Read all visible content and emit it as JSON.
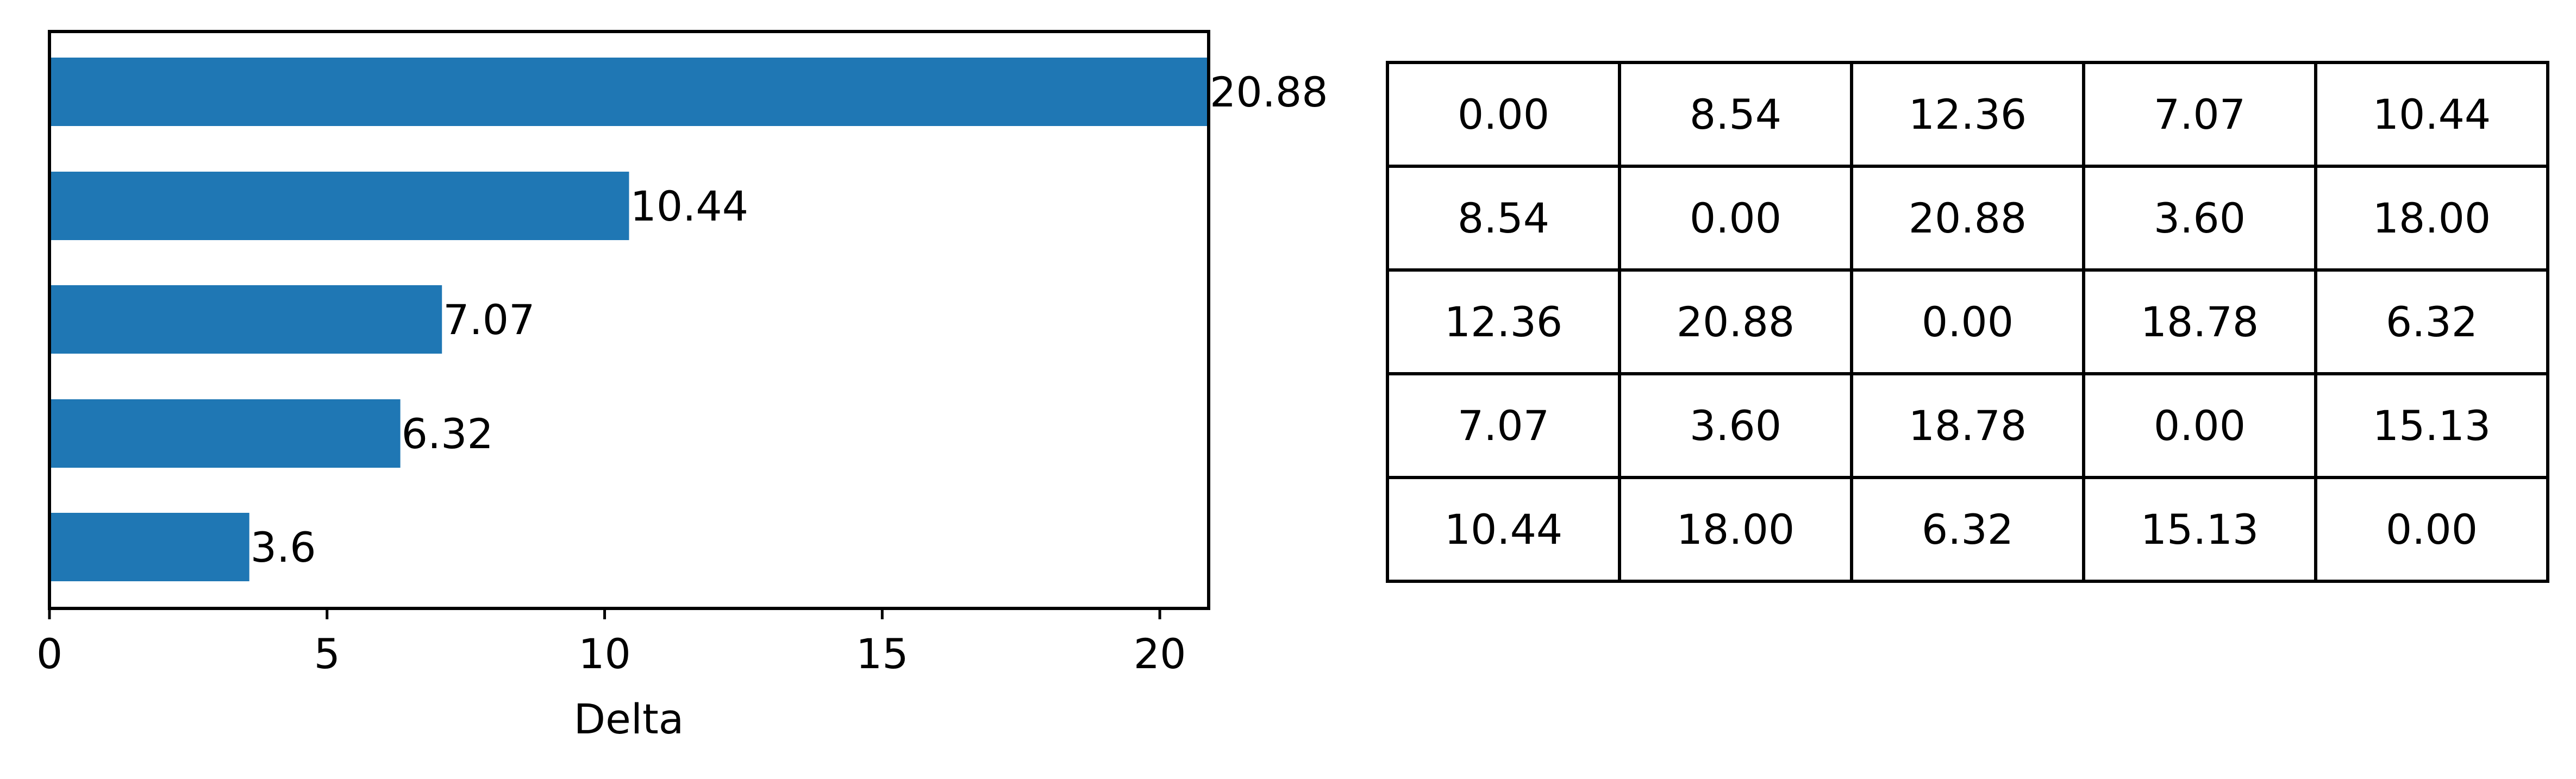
{
  "chart_data": [
    {
      "type": "bar",
      "orientation": "horizontal",
      "categories": [
        "",
        "",
        "",
        "",
        ""
      ],
      "values": [
        20.88,
        10.44,
        7.07,
        6.32,
        3.6
      ],
      "data_labels": [
        "20.88",
        "10.44",
        "7.07",
        "6.32",
        "3.6"
      ],
      "title": "",
      "xlabel": "Delta",
      "ylabel": "",
      "xlim": [
        0,
        20.88
      ],
      "xticks": [
        0,
        5,
        10,
        15,
        20
      ],
      "xtick_labels": [
        "0",
        "5",
        "10",
        "15",
        "20"
      ],
      "grid": false,
      "color": "#1f77b4"
    },
    {
      "type": "table",
      "rows": [
        [
          "0.00",
          "8.54",
          "12.36",
          "7.07",
          "10.44"
        ],
        [
          "8.54",
          "0.00",
          "20.88",
          "3.60",
          "18.00"
        ],
        [
          "12.36",
          "20.88",
          "0.00",
          "18.78",
          "6.32"
        ],
        [
          "7.07",
          "3.60",
          "18.78",
          "0.00",
          "15.13"
        ],
        [
          "10.44",
          "18.00",
          "6.32",
          "15.13",
          "0.00"
        ]
      ]
    }
  ]
}
